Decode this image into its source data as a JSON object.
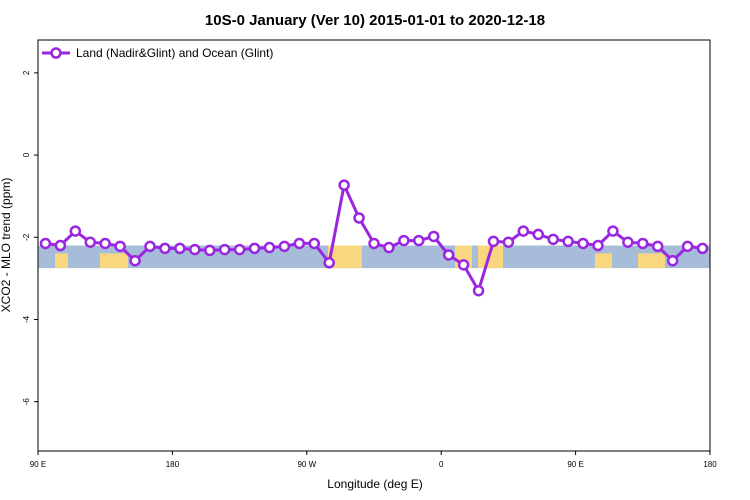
{
  "chart_data": {
    "type": "line",
    "title": "10S-0 January (Ver 10)   2015-01-01 to 2020-12-18",
    "xlabel": "Longitude (deg E)",
    "ylabel": "XCO2 - MLO trend (ppm)",
    "x_tick_labels": [
      "90 E",
      "180",
      "90 W",
      "0",
      "90 E",
      "180"
    ],
    "x_tick_values": [
      90,
      180,
      270,
      360,
      450,
      540
    ],
    "xlim": [
      90,
      540
    ],
    "y_ticks": [
      2,
      0,
      -2,
      -4,
      -6
    ],
    "ylim": [
      -7.2,
      2.8
    ],
    "grid": false,
    "legend_position": "top-left",
    "band_ylim": [
      -2.75,
      -2.2
    ],
    "colors": {
      "line": "#9a26e0",
      "ocean": "#a7bcd9",
      "land": "#f9d77e",
      "frame": "#000000"
    },
    "series": [
      {
        "name": "Land (Nadir&Glint) and Ocean (Glint)",
        "x": [
          95,
          105,
          115,
          125,
          135,
          145,
          155,
          165,
          175,
          185,
          195,
          205,
          215,
          225,
          235,
          245,
          255,
          265,
          275,
          285,
          295,
          305,
          315,
          325,
          335,
          345,
          355,
          365,
          375,
          385,
          395,
          405,
          415,
          425,
          435,
          445,
          455,
          465,
          475,
          485,
          495,
          505,
          515,
          525,
          535
        ],
        "y": [
          -2.15,
          -2.2,
          -1.85,
          -2.12,
          -2.15,
          -2.22,
          -2.57,
          -2.22,
          -2.27,
          -2.27,
          -2.3,
          -2.32,
          -2.3,
          -2.3,
          -2.27,
          -2.25,
          -2.22,
          -2.15,
          -2.15,
          -2.62,
          -0.73,
          -1.53,
          -2.15,
          -2.25,
          -2.08,
          -2.08,
          -1.98,
          -2.43,
          -2.67,
          -3.3,
          -2.1,
          -2.12,
          -1.85,
          -1.93,
          -2.05,
          -2.1,
          -2.15,
          -2.2,
          -1.85,
          -2.12,
          -2.15,
          -2.22,
          -2.57,
          -2.22,
          -2.27
        ]
      }
    ]
  }
}
